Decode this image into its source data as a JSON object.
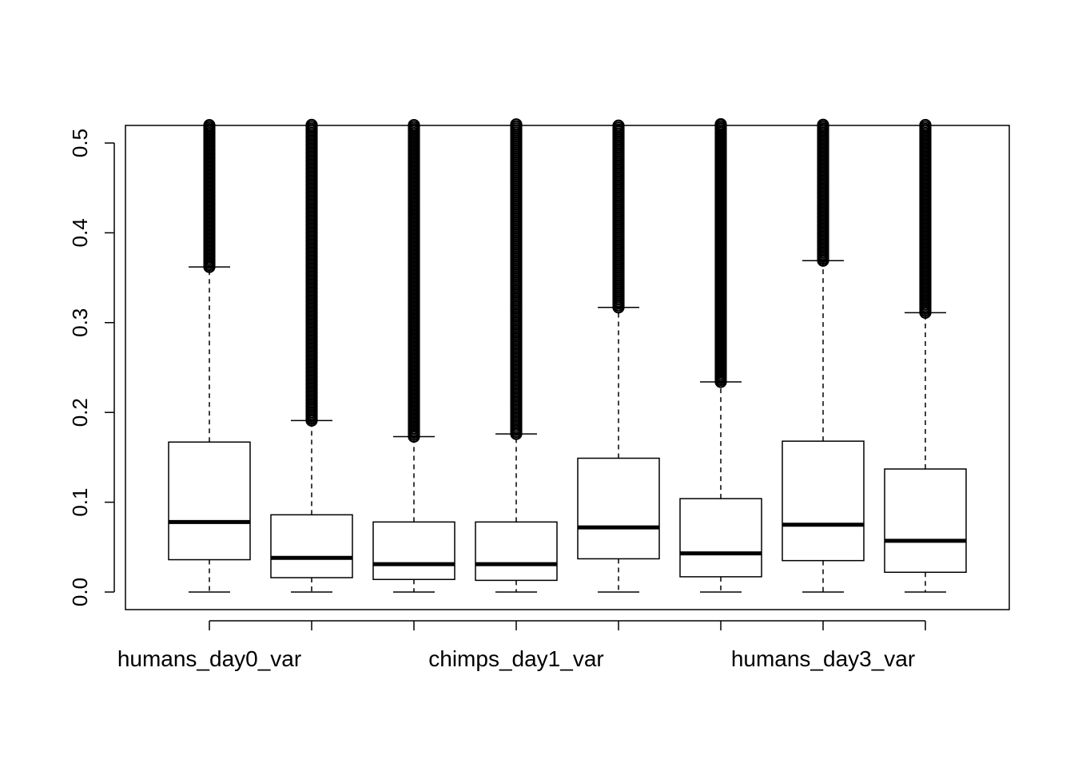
{
  "chart_data": {
    "type": "boxplot",
    "title": "",
    "xlabel": "",
    "ylabel": "",
    "ylim": [
      -0.02,
      0.52
    ],
    "grid": false,
    "legend": "none",
    "y_ticks": [
      "0.0",
      "0.1",
      "0.2",
      "0.3",
      "0.4",
      "0.5"
    ],
    "y_tick_values": [
      0.0,
      0.1,
      0.2,
      0.3,
      0.4,
      0.5
    ],
    "x_tick_labels": [
      {
        "index": 0,
        "text": "humans_day0_var"
      },
      {
        "index": 3,
        "text": "chimps_day1_var"
      },
      {
        "index": 6,
        "text": "humans_day3_var"
      }
    ],
    "boxes": [
      {
        "whisker_low": 0.0,
        "q1": 0.036,
        "median": 0.078,
        "q3": 0.167,
        "whisker_high": 0.362,
        "outliers_from": 0.362
      },
      {
        "whisker_low": 0.0,
        "q1": 0.016,
        "median": 0.038,
        "q3": 0.086,
        "whisker_high": 0.191,
        "outliers_from": 0.191
      },
      {
        "whisker_low": 0.0,
        "q1": 0.014,
        "median": 0.031,
        "q3": 0.078,
        "whisker_high": 0.173,
        "outliers_from": 0.173
      },
      {
        "whisker_low": 0.0,
        "q1": 0.013,
        "median": 0.031,
        "q3": 0.078,
        "whisker_high": 0.176,
        "outliers_from": 0.176
      },
      {
        "whisker_low": 0.0,
        "q1": 0.037,
        "median": 0.072,
        "q3": 0.149,
        "whisker_high": 0.317,
        "outliers_from": 0.317
      },
      {
        "whisker_low": 0.0,
        "q1": 0.017,
        "median": 0.043,
        "q3": 0.104,
        "whisker_high": 0.234,
        "outliers_from": 0.234
      },
      {
        "whisker_low": 0.0,
        "q1": 0.035,
        "median": 0.075,
        "q3": 0.168,
        "whisker_high": 0.369,
        "outliers_from": 0.369
      },
      {
        "whisker_low": 0.0,
        "q1": 0.022,
        "median": 0.057,
        "q3": 0.137,
        "whisker_high": 0.311,
        "outliers_from": 0.311
      }
    ]
  }
}
